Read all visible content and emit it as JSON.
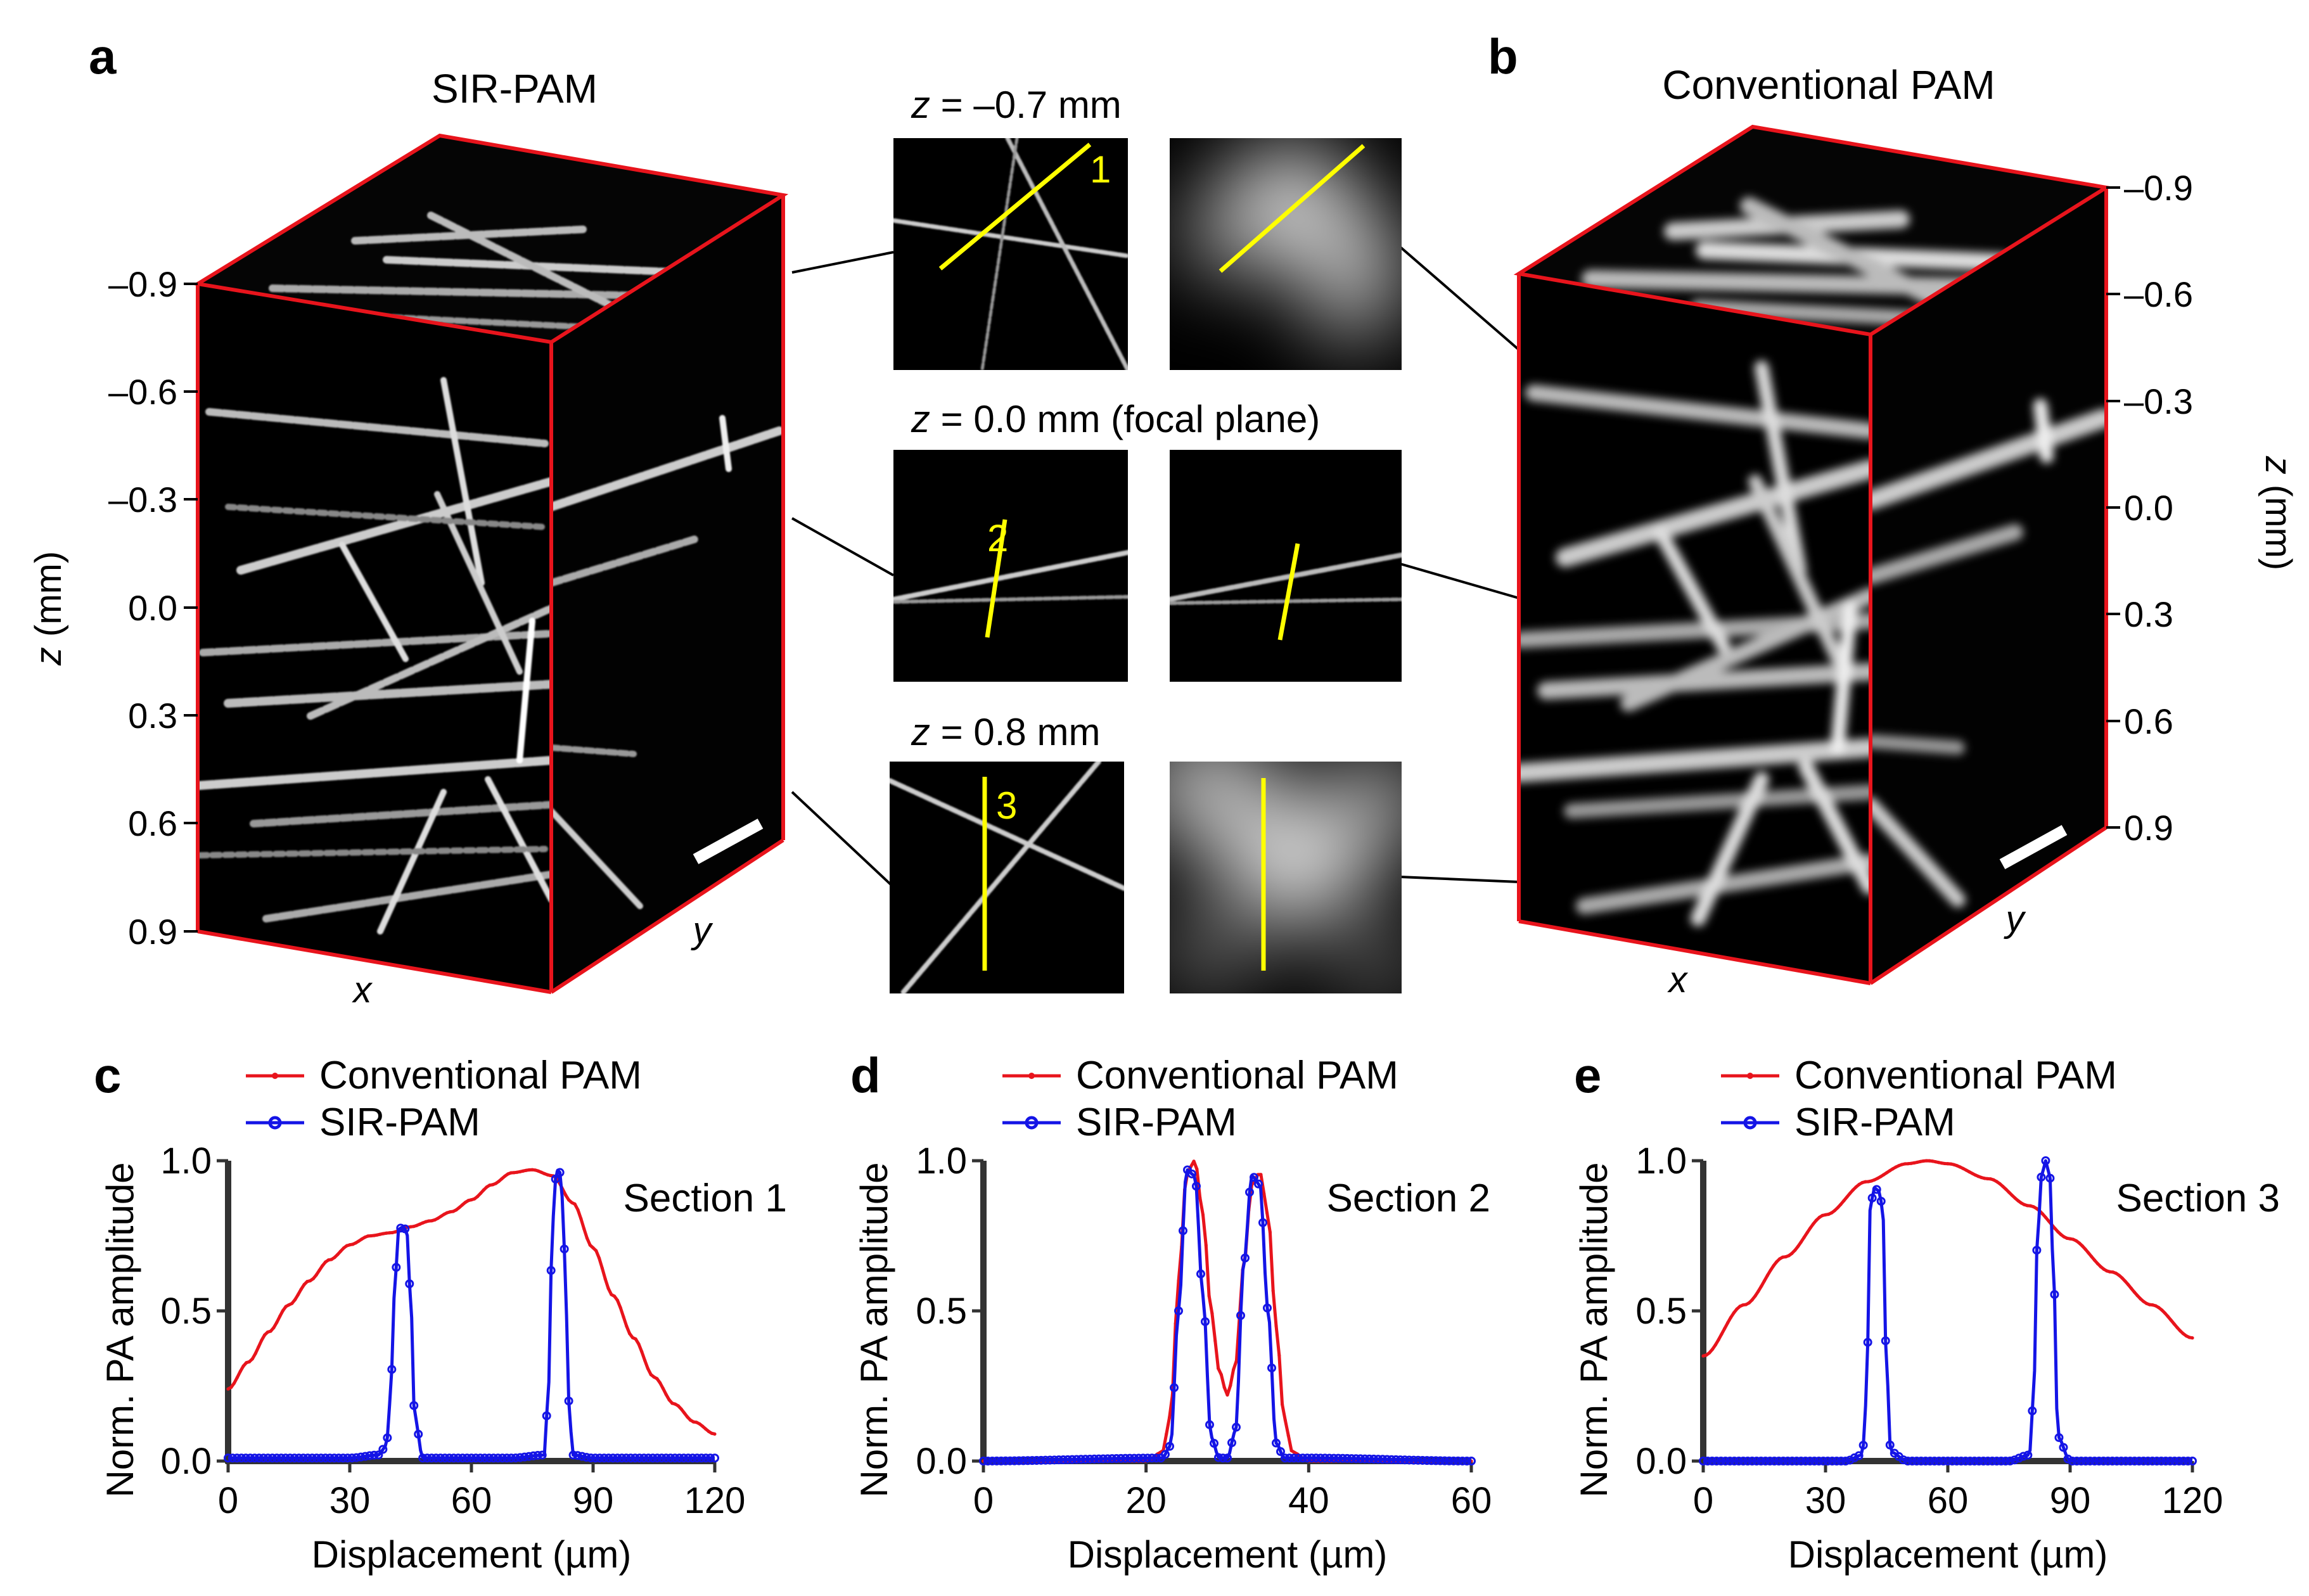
{
  "panels": {
    "a": {
      "letter": "a",
      "title": "SIR-PAM",
      "z_ticks": [
        "–0.9",
        "–0.6",
        "–0.3",
        "0.0",
        "0.3",
        "0.6",
        "0.9"
      ],
      "z_label_italic": "z",
      "z_label_rest": " (mm)",
      "x_label": "x",
      "y_label": "y"
    },
    "b": {
      "letter": "b",
      "title": "Conventional PAM",
      "z_ticks": [
        "–0.9",
        "–0.6",
        "–0.3",
        "0.0",
        "0.3",
        "0.6",
        "0.9"
      ],
      "z_label_italic": "z",
      "z_label_rest": " (mm)",
      "x_label": "x",
      "y_label": "y"
    },
    "slices": [
      {
        "z_italic": "z",
        "z_rest": " = –0.7 mm",
        "section_number": "1"
      },
      {
        "z_italic": "z",
        "z_rest": " = 0.0 mm (focal plane)",
        "section_number": "2"
      },
      {
        "z_italic": "z",
        "z_rest": " = 0.8 mm",
        "section_number": "3"
      }
    ],
    "profiles": [
      {
        "letter": "c",
        "section": "Section 1",
        "xticks": [
          "0",
          "30",
          "60",
          "90",
          "120"
        ],
        "yticks": [
          "0.0",
          "0.5",
          "1.0"
        ]
      },
      {
        "letter": "d",
        "section": "Section 2",
        "xticks": [
          "0",
          "20",
          "40",
          "60"
        ],
        "yticks": [
          "0.0",
          "0.5",
          "1.0"
        ]
      },
      {
        "letter": "e",
        "section": "Section 3",
        "xticks": [
          "0",
          "30",
          "60",
          "90",
          "120"
        ],
        "yticks": [
          "0.0",
          "0.5",
          "1.0"
        ]
      }
    ],
    "legend": {
      "conventional": "Conventional PAM",
      "sir": "SIR-PAM"
    },
    "axis_titles": {
      "x": "Displacement (µm)",
      "y": "Norm. PA amplitude"
    }
  },
  "colors": {
    "conventional": "#e8141c",
    "sir": "#1414e6",
    "marker_line": "#ffff00",
    "box_edge": "#e8141c"
  },
  "chart_data": [
    {
      "type": "line",
      "title": "Section 1",
      "xlabel": "Displacement (µm)",
      "ylabel": "Norm. PA amplitude",
      "xlim": [
        0,
        120
      ],
      "ylim": [
        0,
        1
      ],
      "series": [
        {
          "name": "Conventional PAM",
          "x": [
            0,
            5,
            10,
            15,
            20,
            25,
            30,
            35,
            40,
            45,
            50,
            55,
            60,
            65,
            70,
            75,
            80,
            85,
            90,
            95,
            100,
            105,
            110,
            115,
            120
          ],
          "y": [
            0.24,
            0.33,
            0.43,
            0.52,
            0.6,
            0.67,
            0.72,
            0.75,
            0.76,
            0.78,
            0.8,
            0.83,
            0.87,
            0.92,
            0.96,
            0.97,
            0.95,
            0.86,
            0.71,
            0.55,
            0.41,
            0.28,
            0.19,
            0.13,
            0.09
          ]
        },
        {
          "name": "SIR-PAM",
          "x": [
            0,
            30,
            37,
            39,
            40,
            41,
            42,
            43,
            44,
            45,
            46,
            48,
            55,
            70,
            78,
            79,
            80,
            81,
            82,
            83,
            84,
            85,
            90,
            120
          ],
          "y": [
            0.01,
            0.01,
            0.02,
            0.05,
            0.2,
            0.55,
            0.77,
            0.78,
            0.77,
            0.55,
            0.15,
            0.01,
            0.01,
            0.01,
            0.02,
            0.25,
            0.8,
            0.97,
            0.96,
            0.7,
            0.2,
            0.02,
            0.01,
            0.01
          ]
        }
      ]
    },
    {
      "type": "line",
      "title": "Section 2",
      "xlabel": "Displacement (µm)",
      "ylabel": "Norm. PA amplitude",
      "xlim": [
        0,
        60
      ],
      "ylim": [
        0,
        1
      ],
      "series": [
        {
          "name": "Conventional PAM",
          "x": [
            0,
            20,
            22,
            23,
            24,
            25,
            26,
            27,
            28,
            29,
            30,
            31,
            32,
            33,
            34,
            35,
            36,
            37,
            38,
            40,
            60
          ],
          "y": [
            0,
            0,
            0.03,
            0.15,
            0.6,
            0.96,
            1.0,
            0.82,
            0.5,
            0.3,
            0.22,
            0.32,
            0.65,
            0.92,
            0.96,
            0.82,
            0.45,
            0.14,
            0.03,
            0,
            0
          ]
        },
        {
          "name": "SIR-PAM",
          "x": [
            0,
            22,
            23,
            24,
            25,
            26,
            27,
            28,
            29,
            30,
            31,
            32,
            33,
            34,
            35,
            36,
            37,
            40,
            60
          ],
          "y": [
            0,
            0.01,
            0.05,
            0.5,
            0.97,
            0.95,
            0.55,
            0.08,
            0.01,
            0.01,
            0.1,
            0.65,
            0.95,
            0.92,
            0.5,
            0.06,
            0.01,
            0.01,
            0
          ]
        }
      ]
    },
    {
      "type": "line",
      "title": "Section 3",
      "xlabel": "Displacement (µm)",
      "ylabel": "Norm. PA amplitude",
      "xlim": [
        0,
        120
      ],
      "ylim": [
        0,
        1
      ],
      "series": [
        {
          "name": "Conventional PAM",
          "x": [
            0,
            10,
            20,
            30,
            40,
            50,
            55,
            60,
            70,
            80,
            90,
            100,
            110,
            120
          ],
          "y": [
            0.35,
            0.52,
            0.68,
            0.82,
            0.93,
            0.99,
            1.0,
            0.99,
            0.94,
            0.85,
            0.74,
            0.63,
            0.52,
            0.41
          ]
        },
        {
          "name": "SIR-PAM",
          "x": [
            0,
            35,
            39,
            40,
            41,
            42,
            43,
            44,
            45,
            46,
            50,
            75,
            80,
            81,
            82,
            83,
            84,
            85,
            86,
            87,
            90,
            120
          ],
          "y": [
            0,
            0,
            0.02,
            0.2,
            0.85,
            0.91,
            0.9,
            0.85,
            0.3,
            0.03,
            0,
            0,
            0.02,
            0.2,
            0.75,
            0.95,
            1.0,
            0.95,
            0.6,
            0.08,
            0,
            0
          ]
        }
      ]
    }
  ]
}
